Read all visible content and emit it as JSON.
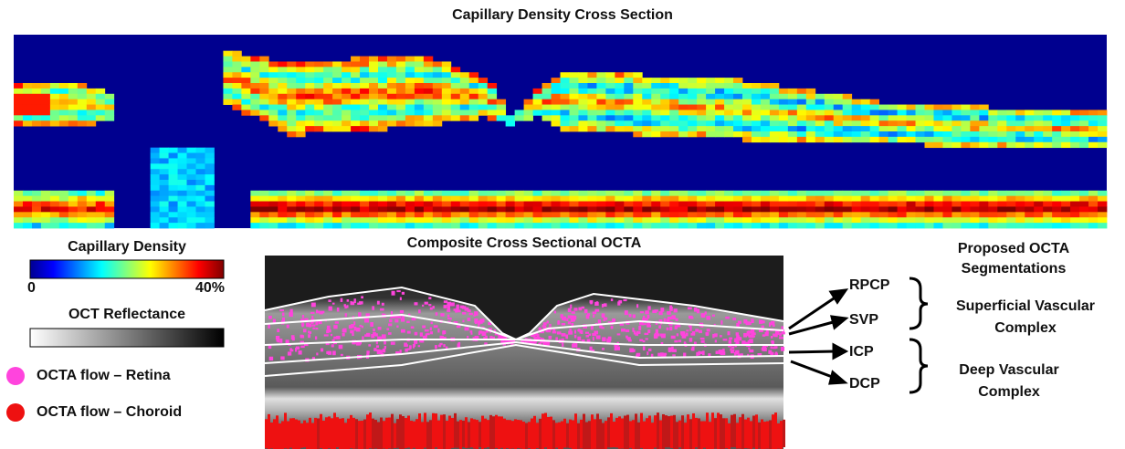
{
  "heatmap": {
    "title": "Capillary Density Cross Section"
  },
  "colorbar": {
    "title": "Capillary Density",
    "min_label": "0",
    "max_label": "40%"
  },
  "reflectance_bar": {
    "title": "OCT Reflectance"
  },
  "legend": [
    {
      "label": "OCTA flow – Retina"
    },
    {
      "label": "OCTA flow – Choroid"
    }
  ],
  "oct_image": {
    "title": "Composite Cross Sectional OCTA"
  },
  "segmentations": {
    "title": "Proposed OCTA Segmentations",
    "layers": [
      "RPCP",
      "SVP",
      "ICP",
      "DCP"
    ],
    "groups": [
      "Superficial Vascular Complex",
      "Deep Vascular Complex"
    ]
  }
}
